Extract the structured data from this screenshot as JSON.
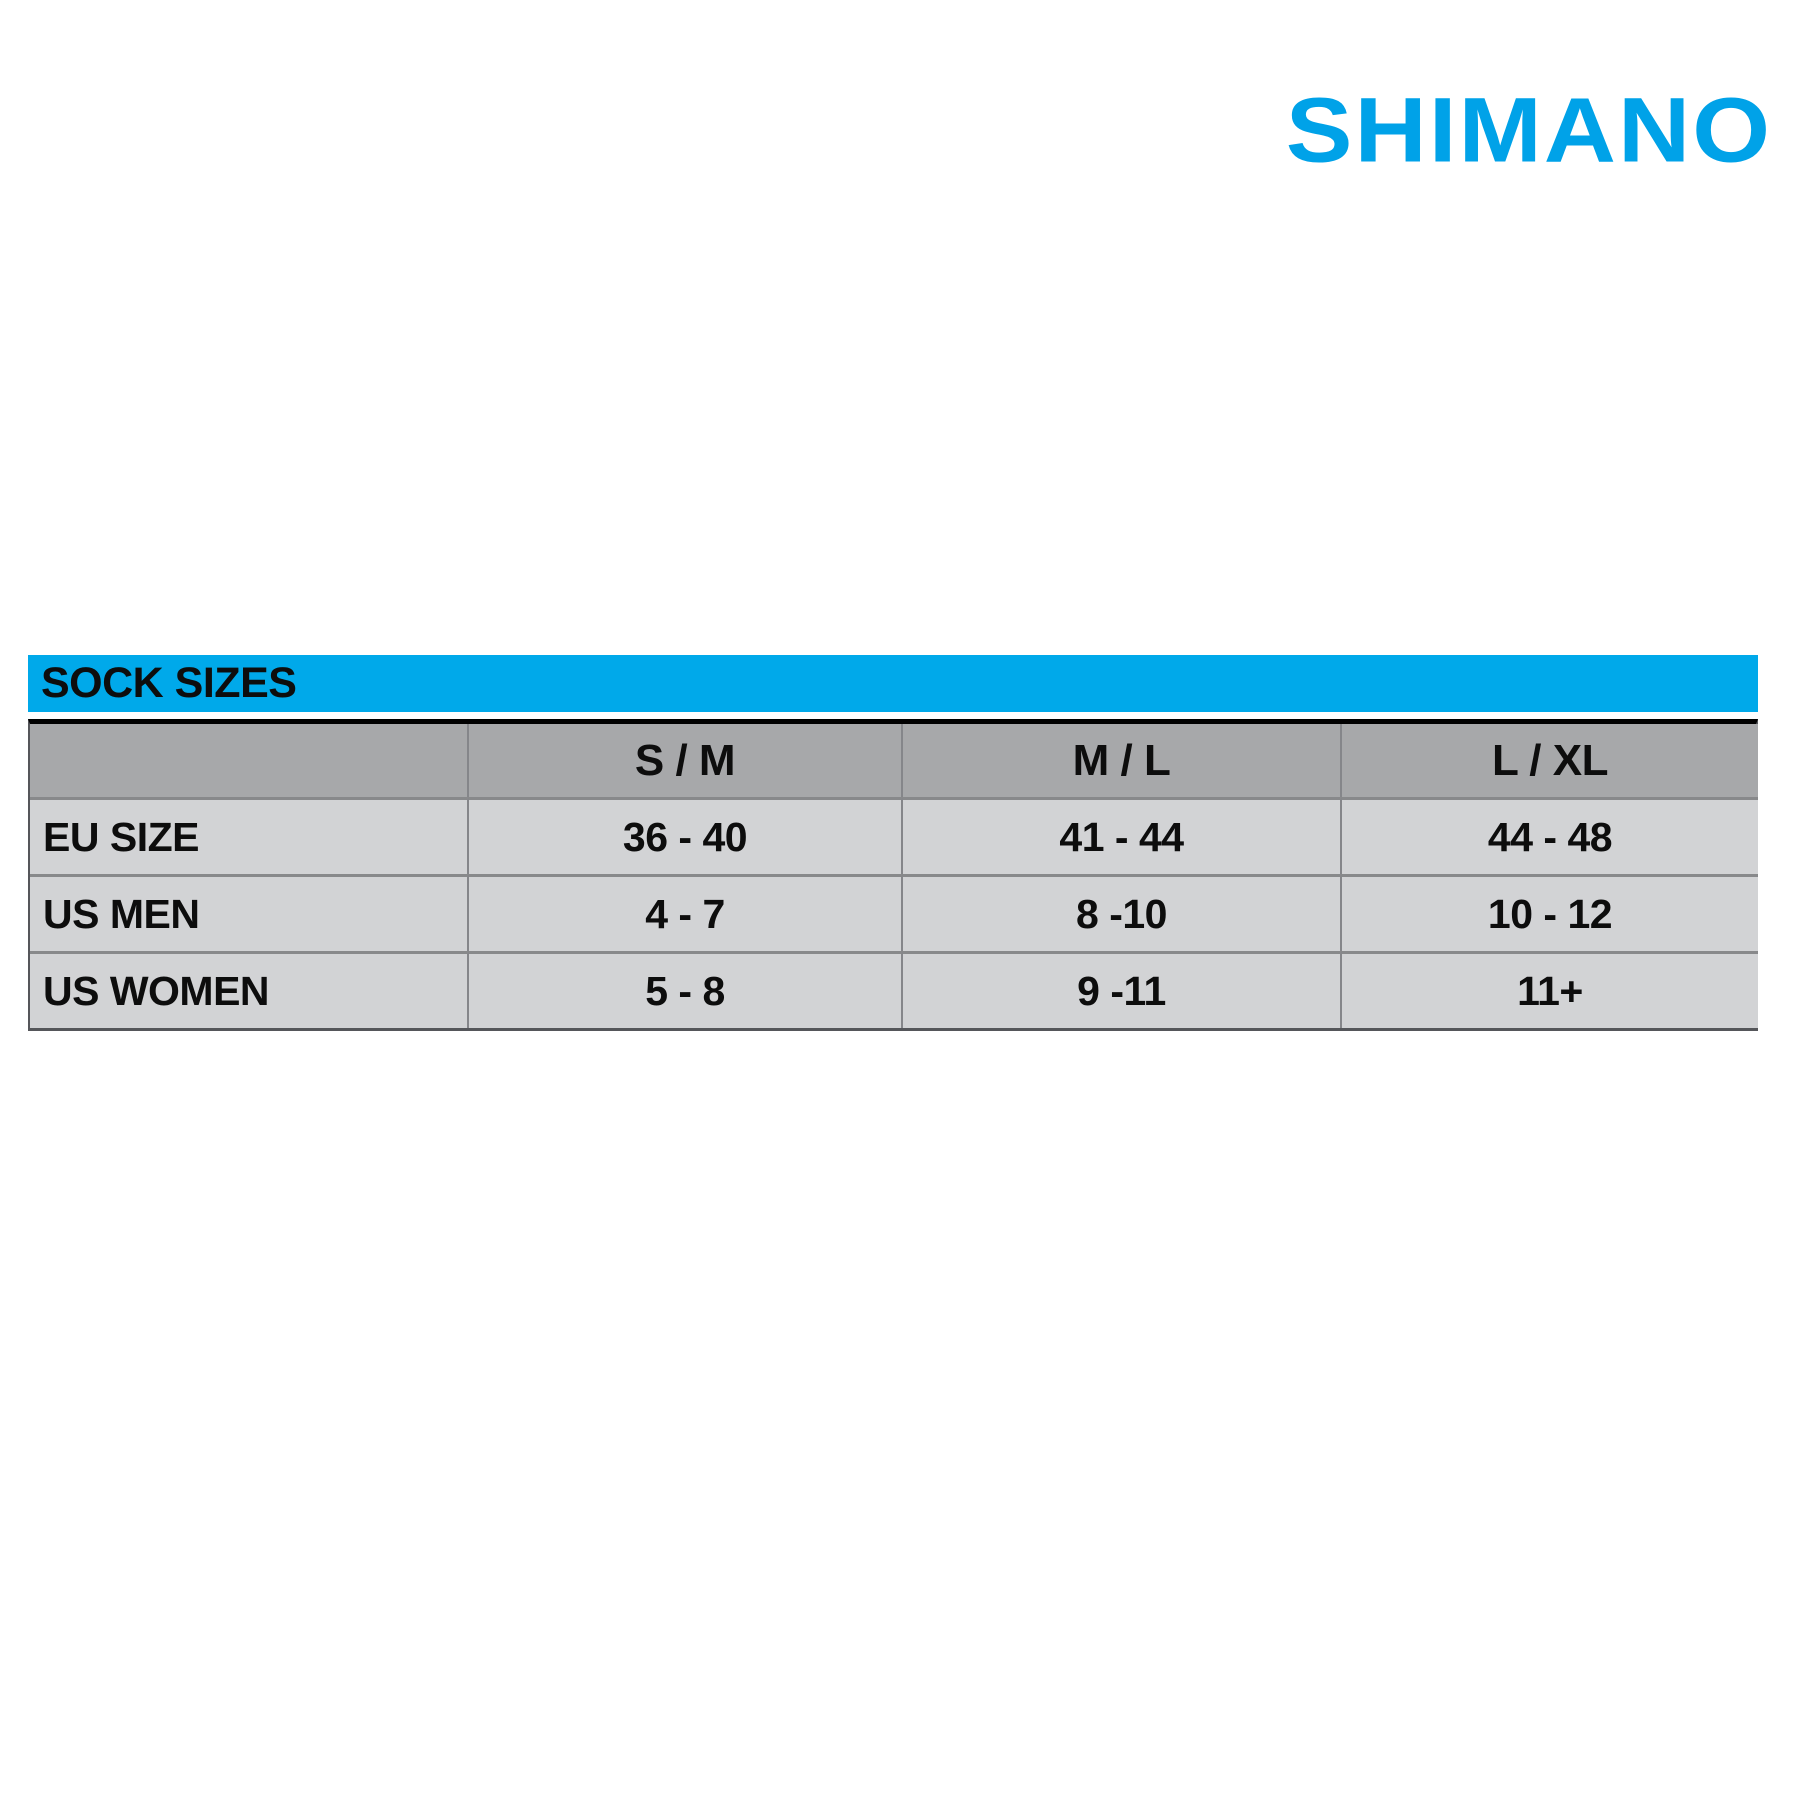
{
  "brand": {
    "logo_text": "SHIMANO",
    "logo_color": "#00A2E8"
  },
  "table": {
    "title": "SOCK SIZES",
    "banner_color": "#00A9EA",
    "header_row_color": "#A7A8AA",
    "data_row_color": "#D2D3D5",
    "columns": {
      "c0": "",
      "c1": "S / M",
      "c2": "M / L",
      "c3": "L / XL"
    },
    "rows": [
      {
        "label": "EU SIZE",
        "values": [
          "36 - 40",
          "41 - 44",
          "44 - 48"
        ]
      },
      {
        "label": "US MEN",
        "values": [
          "4 - 7",
          "8 -10",
          "10 - 12"
        ]
      },
      {
        "label": "US WOMEN",
        "values": [
          "5 - 8",
          "9 -11",
          "11+"
        ]
      }
    ]
  },
  "chart_data": {
    "type": "table",
    "title": "SOCK SIZES",
    "columns": [
      "",
      "S / M",
      "M / L",
      "L / XL"
    ],
    "rows": [
      [
        "EU SIZE",
        "36 - 40",
        "41 - 44",
        "44 - 48"
      ],
      [
        "US MEN",
        "4 - 7",
        "8 -10",
        "10 - 12"
      ],
      [
        "US WOMEN",
        "5 - 8",
        "9 -11",
        "11+"
      ]
    ],
    "legend_position": "none",
    "grid": true
  }
}
